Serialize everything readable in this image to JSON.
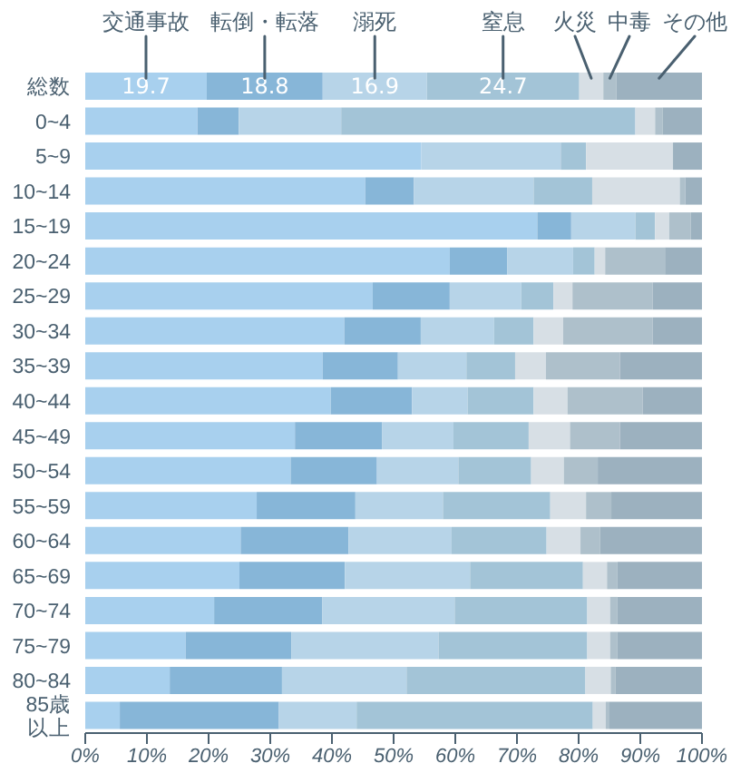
{
  "chart_data": {
    "type": "bar",
    "orientation": "horizontal",
    "stacked": true,
    "legend": "top",
    "categories": [
      "総数",
      "0~4",
      "5~9",
      "10~14",
      "15~19",
      "20~24",
      "25~29",
      "30~34",
      "35~39",
      "40~44",
      "45~49",
      "50~54",
      "55~59",
      "60~64",
      "65~69",
      "70~74",
      "75~79",
      "80~84",
      "85歳以上"
    ],
    "series": [
      {
        "name": "交通事故",
        "color": "#a8d0ee",
        "values": [
          19.7,
          18.2,
          54.5,
          45.4,
          73.3,
          59.1,
          46.6,
          42.0,
          38.5,
          39.8,
          34.0,
          33.3,
          27.8,
          25.2,
          25.0,
          20.9,
          16.3,
          13.7,
          5.6
        ],
        "value_labels": [
          "19.7",
          null,
          null,
          null,
          null,
          null,
          null,
          null,
          null,
          null,
          null,
          null,
          null,
          null,
          null,
          null,
          null,
          null,
          null
        ]
      },
      {
        "name": "転倒・転落",
        "color": "#87b6d8",
        "values": [
          18.8,
          6.7,
          0,
          7.9,
          5.5,
          9.3,
          12.5,
          12.4,
          12.2,
          13.2,
          14.1,
          14.0,
          16.0,
          17.5,
          17.1,
          17.5,
          17.1,
          18.2,
          25.8
        ],
        "value_labels": [
          "18.8",
          null,
          null,
          null,
          null,
          null,
          null,
          null,
          null,
          null,
          null,
          null,
          null,
          null,
          null,
          null,
          null,
          null,
          null
        ]
      },
      {
        "name": "溺死",
        "color": "#b7d4e8",
        "values": [
          16.9,
          16.6,
          22.6,
          19.4,
          10.4,
          10.7,
          11.6,
          11.9,
          11.1,
          9.0,
          11.6,
          13.2,
          14.2,
          16.7,
          20.3,
          21.5,
          23.9,
          20.2,
          12.6
        ],
        "value_labels": [
          "16.9",
          null,
          null,
          null,
          null,
          null,
          null,
          null,
          null,
          null,
          null,
          null,
          null,
          null,
          null,
          null,
          null,
          null,
          null
        ]
      },
      {
        "name": "窒息",
        "color": "#a3c4d7",
        "values": [
          24.7,
          47.7,
          4.1,
          9.5,
          3.2,
          3.5,
          5.2,
          6.4,
          7.9,
          10.7,
          12.2,
          11.8,
          17.4,
          15.4,
          18.3,
          21.5,
          24.1,
          29.0,
          38.3
        ],
        "value_labels": [
          "24.7",
          null,
          null,
          null,
          null,
          null,
          null,
          null,
          null,
          null,
          null,
          null,
          null,
          null,
          null,
          null,
          null,
          null,
          null
        ]
      },
      {
        "name": "火災",
        "color": "#d7dfe5",
        "values": [
          3.9,
          3.2,
          14.1,
          14.2,
          2.3,
          1.7,
          3.1,
          4.8,
          5.0,
          5.5,
          6.7,
          5.3,
          5.8,
          5.5,
          3.9,
          3.7,
          3.7,
          4.1,
          2.1
        ]
      },
      {
        "name": "中毒",
        "color": "#aec0cb",
        "values": [
          2.1,
          1.2,
          0,
          0.9,
          3.5,
          9.7,
          13.0,
          14.5,
          12.0,
          12.2,
          8.1,
          5.5,
          4.1,
          3.2,
          1.7,
          1.2,
          1.2,
          0.8,
          0.6
        ]
      },
      {
        "name": "その他",
        "color": "#9cb1bf",
        "values": [
          13.9,
          6.4,
          4.7,
          2.7,
          1.8,
          6.0,
          8.0,
          8.0,
          13.3,
          9.6,
          13.3,
          16.9,
          14.7,
          16.5,
          13.7,
          13.7,
          13.7,
          14.0,
          15.0
        ]
      }
    ],
    "xlim": [
      0,
      100
    ],
    "xticks": [
      {
        "value": 0,
        "label": "0%"
      },
      {
        "value": 10,
        "label": "10%"
      },
      {
        "value": 20,
        "label": "20%"
      },
      {
        "value": 30,
        "label": "30%"
      },
      {
        "value": 40,
        "label": "40%"
      },
      {
        "value": 50,
        "label": "50%"
      },
      {
        "value": 60,
        "label": "60%"
      },
      {
        "value": 70,
        "label": "70%"
      },
      {
        "value": 80,
        "label": "80%"
      },
      {
        "value": 90,
        "label": "90%"
      },
      {
        "value": 100,
        "label": "100%"
      }
    ]
  }
}
